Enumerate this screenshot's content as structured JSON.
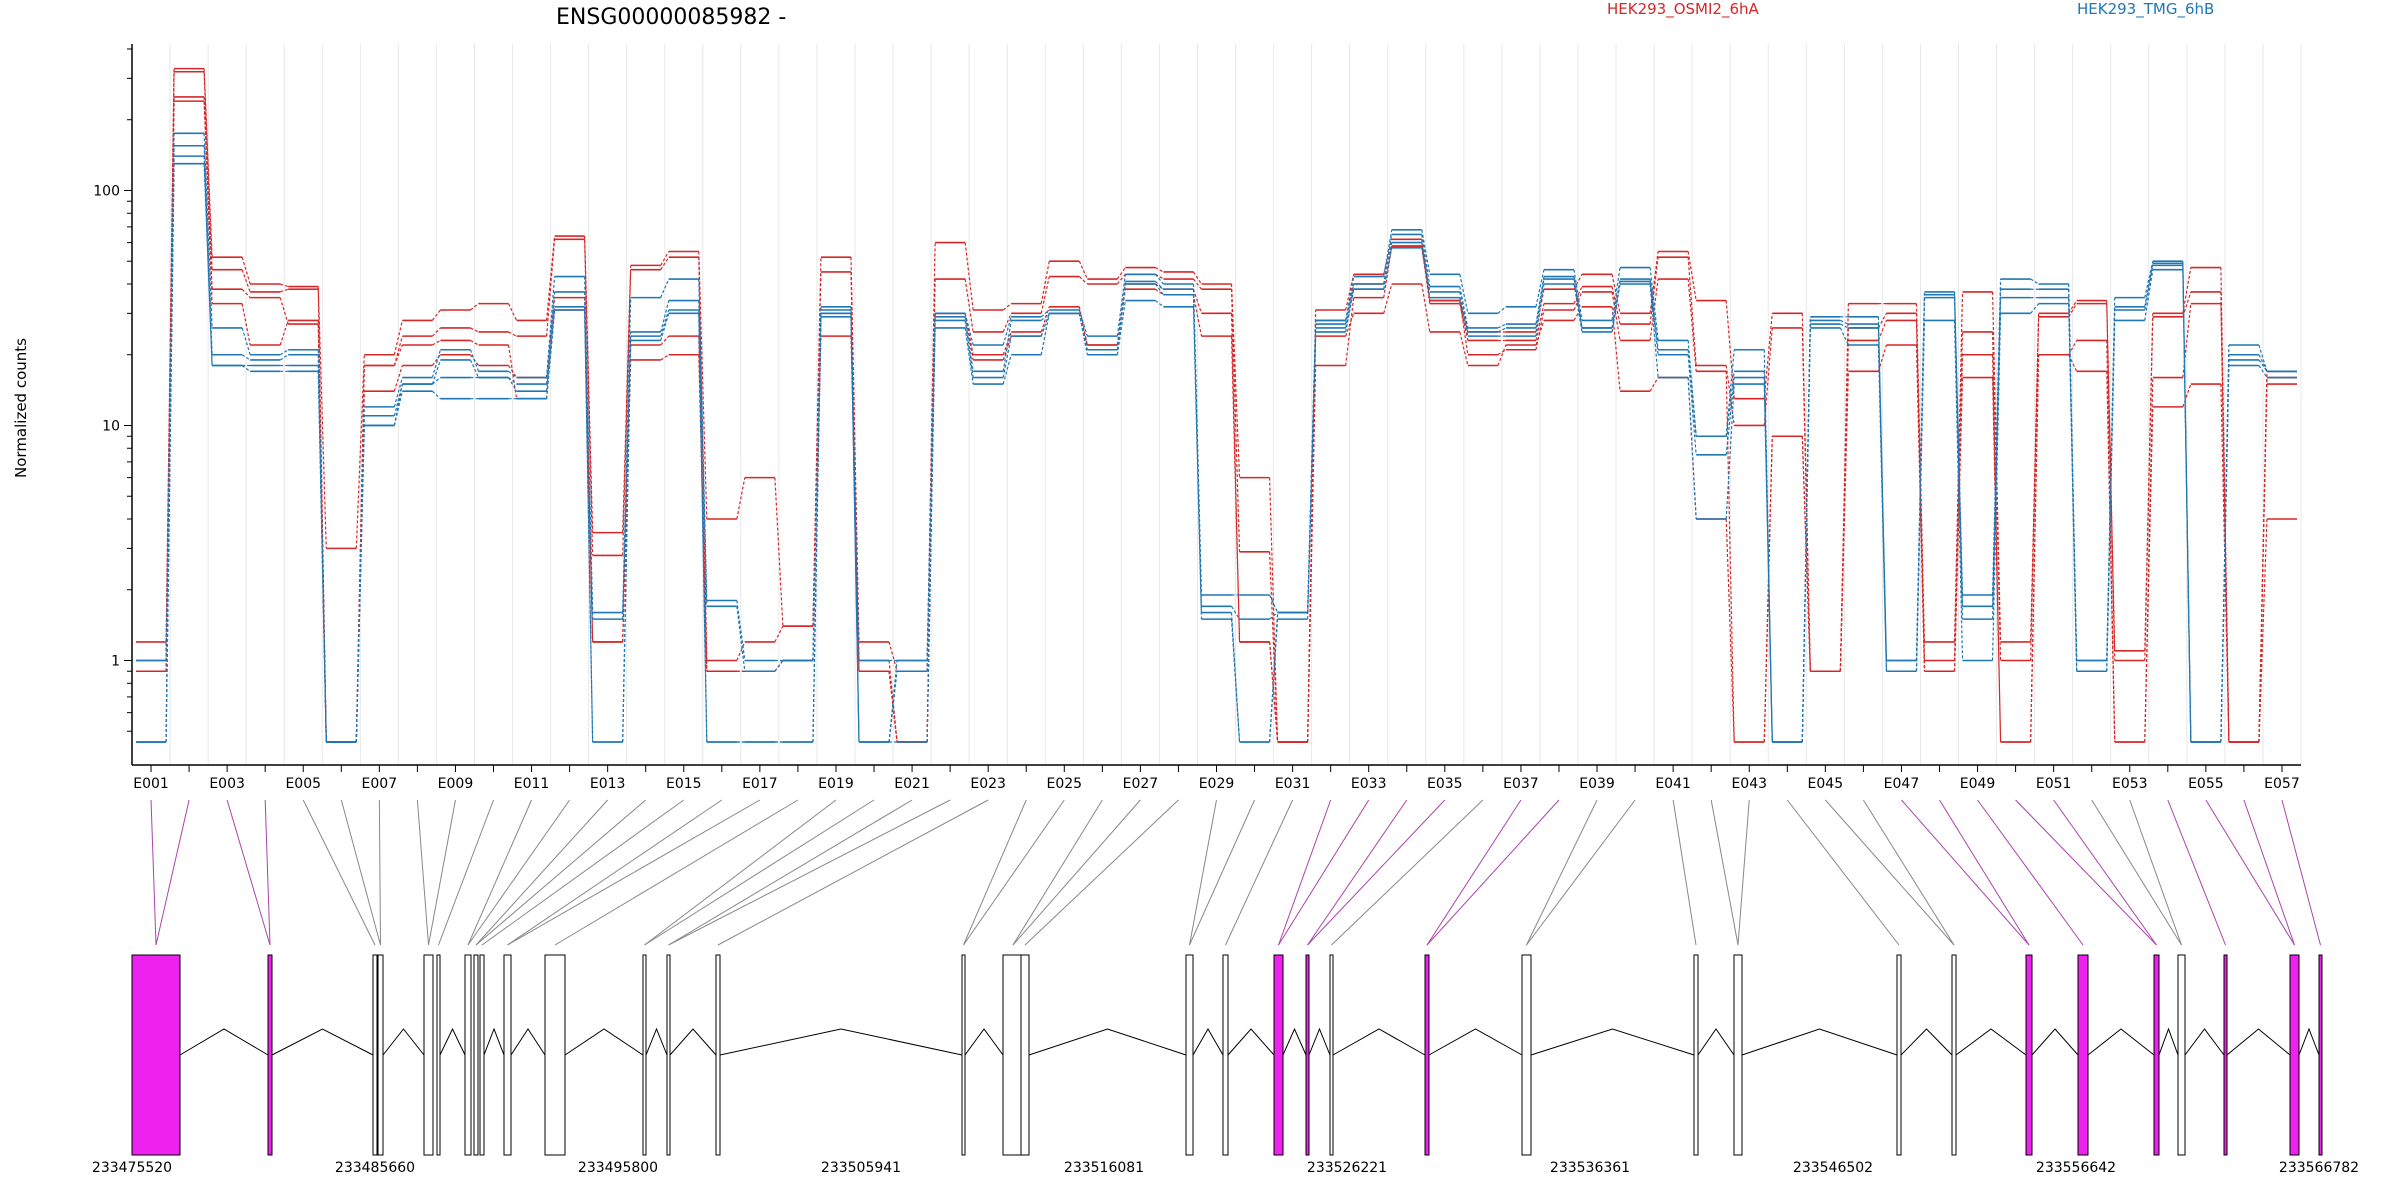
{
  "chart_data": {
    "type": "line",
    "title": "ENSG00000085982 -",
    "ylabel": "Normalized counts",
    "yscale": "log",
    "ylim": [
      0.45,
      420
    ],
    "yticks": [
      "1",
      "10",
      "100"
    ],
    "grid": "vertical lines at each exon, light grey",
    "legend": [
      {
        "name": "HEK293_OSMI2_6hA",
        "color": "#d62728"
      },
      {
        "name": "HEK293_TMG_6hB",
        "color": "#1f77b4"
      }
    ],
    "x_tick_labels": [
      "E001",
      "E003",
      "E005",
      "E007",
      "E009",
      "E011",
      "E013",
      "E015",
      "E017",
      "E019",
      "E021",
      "E023",
      "E025",
      "E027",
      "E029",
      "E031",
      "E033",
      "E035",
      "E037",
      "E039",
      "E041",
      "E043",
      "E045",
      "E047",
      "E049",
      "E051",
      "E053",
      "E055",
      "E057"
    ],
    "exons": [
      "E001",
      "E002",
      "E003",
      "E004",
      "E005",
      "E006",
      "E007",
      "E008",
      "E009",
      "E010",
      "E011",
      "E012",
      "E013",
      "E014",
      "E015",
      "E016",
      "E017",
      "E018",
      "E019",
      "E020",
      "E021",
      "E022",
      "E023",
      "E024",
      "E025",
      "E026",
      "E027",
      "E028",
      "E029",
      "E030",
      "E031",
      "E032",
      "E033",
      "E034",
      "E035",
      "E036",
      "E037",
      "E038",
      "E039",
      "E040",
      "E041",
      "E042",
      "E043",
      "E044",
      "E045",
      "E046",
      "E047",
      "E048",
      "E049",
      "E050",
      "E051",
      "E052",
      "E053",
      "E054",
      "E055",
      "E056",
      "E057"
    ],
    "series": [
      {
        "name": "HEK293_OSMI2_6hA",
        "group": "HEK293_OSMI2_6hA",
        "values": [
          1.2,
          330,
          52,
          40,
          39,
          3,
          20,
          28,
          31,
          33,
          28,
          64,
          3.5,
          48,
          55,
          4,
          6,
          1.4,
          52,
          1.2,
          0.9,
          60,
          31,
          33,
          50,
          42,
          47,
          45,
          40,
          6,
          0.45,
          31,
          44,
          62,
          34,
          25,
          25,
          38,
          44,
          30,
          55,
          34,
          13,
          30,
          0.9,
          33,
          33,
          1.2,
          37,
          1.2,
          30,
          34,
          1.1,
          30,
          47,
          0.45,
          17
        ]
      },
      {
        "name": "HEK293_OSMI2_6hA",
        "group": "HEK293_OSMI2_6hA",
        "values": [
          1.0,
          320,
          46,
          37,
          38,
          0.45,
          18,
          24,
          26,
          25,
          24,
          62,
          2.8,
          46,
          52,
          1.0,
          1.2,
          1.4,
          45,
          1.0,
          0.45,
          42,
          25,
          30,
          43,
          40,
          44,
          42,
          38,
          2.9,
          0.45,
          28,
          40,
          58,
          33,
          23,
          23,
          33,
          39,
          27,
          52,
          18,
          10,
          26,
          0.9,
          26,
          30,
          1.0,
          25,
          1.0,
          29,
          33,
          1.0,
          29,
          37,
          0.45,
          16
        ]
      },
      {
        "name": "HEK293_OSMI2_6hA",
        "group": "HEK293_OSMI2_6hA",
        "values": [
          0.9,
          250,
          33,
          22,
          28,
          0.45,
          14,
          18,
          20,
          18,
          16,
          35,
          1.2,
          22,
          24,
          0.9,
          0.9,
          1.0,
          30,
          0.9,
          0.45,
          30,
          20,
          25,
          32,
          22,
          40,
          38,
          30,
          1.2,
          0.45,
          18,
          35,
          58,
          34,
          20,
          21,
          31,
          37,
          23,
          42,
          17,
          0.45,
          9,
          0.9,
          23,
          28,
          0.9,
          20,
          0.45,
          20,
          23,
          0.45,
          16,
          33,
          0.45,
          15
        ]
      },
      {
        "name": "HEK293_OSMI2_6hA",
        "group": "HEK293_OSMI2_6hA",
        "values": [
          0.9,
          240,
          38,
          35,
          27,
          0.45,
          18,
          22,
          23,
          22,
          13,
          31,
          1.2,
          19,
          20,
          0.9,
          0.9,
          1.0,
          24,
          0.9,
          0.45,
          30,
          19,
          24,
          30,
          22,
          38,
          36,
          24,
          1.2,
          0.45,
          24,
          30,
          40,
          25,
          18,
          22,
          28,
          32,
          14,
          16,
          4,
          0.45,
          9,
          0.9,
          17,
          22,
          0.9,
          16,
          0.45,
          20,
          17,
          0.45,
          12,
          15,
          0.45,
          4
        ]
      },
      {
        "name": "HEK293_TMG_6hB",
        "group": "HEK293_TMG_6hB",
        "values": [
          1.0,
          175,
          26,
          20,
          21,
          0.45,
          12,
          16,
          21,
          17,
          16,
          43,
          1.6,
          35,
          42,
          1.8,
          1.0,
          1.0,
          32,
          1.0,
          1.0,
          30,
          22,
          29,
          31,
          24,
          44,
          40,
          1.9,
          1.9,
          1.6,
          28,
          43,
          68,
          44,
          30,
          32,
          46,
          28,
          47,
          23,
          9,
          21,
          0.45,
          29,
          29,
          1.0,
          37,
          1.9,
          42,
          40,
          1.0,
          35,
          50,
          0.45,
          22,
          17
        ]
      },
      {
        "name": "HEK293_TMG_6hB",
        "group": "HEK293_TMG_6hB",
        "values": [
          0.45,
          155,
          20,
          19,
          20,
          0.45,
          11,
          15,
          19,
          16,
          15,
          37,
          1.5,
          25,
          34,
          1.7,
          0.9,
          1.0,
          31,
          0.45,
          1.0,
          29,
          17,
          28,
          30,
          21,
          41,
          38,
          1.7,
          1.5,
          1.6,
          27,
          40,
          65,
          39,
          26,
          27,
          43,
          26,
          42,
          21,
          9,
          17,
          0.45,
          28,
          27,
          1.0,
          36,
          1.7,
          38,
          38,
          1.0,
          32,
          49,
          0.45,
          20,
          17
        ]
      },
      {
        "name": "HEK293_TMG_6hB",
        "group": "HEK293_TMG_6hB",
        "values": [
          0.45,
          140,
          18,
          18,
          18,
          0.45,
          10,
          15,
          16,
          16,
          14,
          32,
          0.45,
          24,
          31,
          0.45,
          0.45,
          0.45,
          30,
          0.45,
          0.9,
          28,
          16,
          24,
          30,
          21,
          40,
          36,
          1.6,
          0.45,
          1.6,
          26,
          38,
          60,
          37,
          25,
          26,
          42,
          26,
          41,
          20,
          7.5,
          16,
          0.45,
          27,
          26,
          0.9,
          35,
          1.5,
          35,
          35,
          0.9,
          31,
          48,
          0.45,
          19,
          17
        ]
      },
      {
        "name": "HEK293_TMG_6hB",
        "group": "HEK293_TMG_6hB",
        "values": [
          0.45,
          130,
          18,
          17,
          17,
          0.45,
          10,
          14,
          13,
          13,
          13,
          31,
          0.45,
          23,
          30,
          0.45,
          0.45,
          0.45,
          29,
          0.45,
          0.45,
          26,
          15,
          20,
          30,
          20,
          34,
          32,
          1.5,
          0.45,
          1.5,
          25,
          38,
          57,
          35,
          24,
          24,
          40,
          25,
          40,
          16,
          4,
          15,
          0.45,
          26,
          22,
          0.9,
          28,
          1.0,
          30,
          33,
          0.9,
          28,
          46,
          0.45,
          18,
          16
        ]
      }
    ],
    "gene_model": {
      "coordinate_labels": [
        "233475520",
        "233485660",
        "233495800",
        "233505941",
        "233516081",
        "233526221",
        "233536361",
        "233546502",
        "233556642",
        "233566782"
      ],
      "colors": {
        "exon": "#ffffff",
        "alternative_exon": "#ee22ee",
        "intron": "#000000",
        "connector": "#888888",
        "alternative_connector": "#aa44aa"
      }
    }
  }
}
